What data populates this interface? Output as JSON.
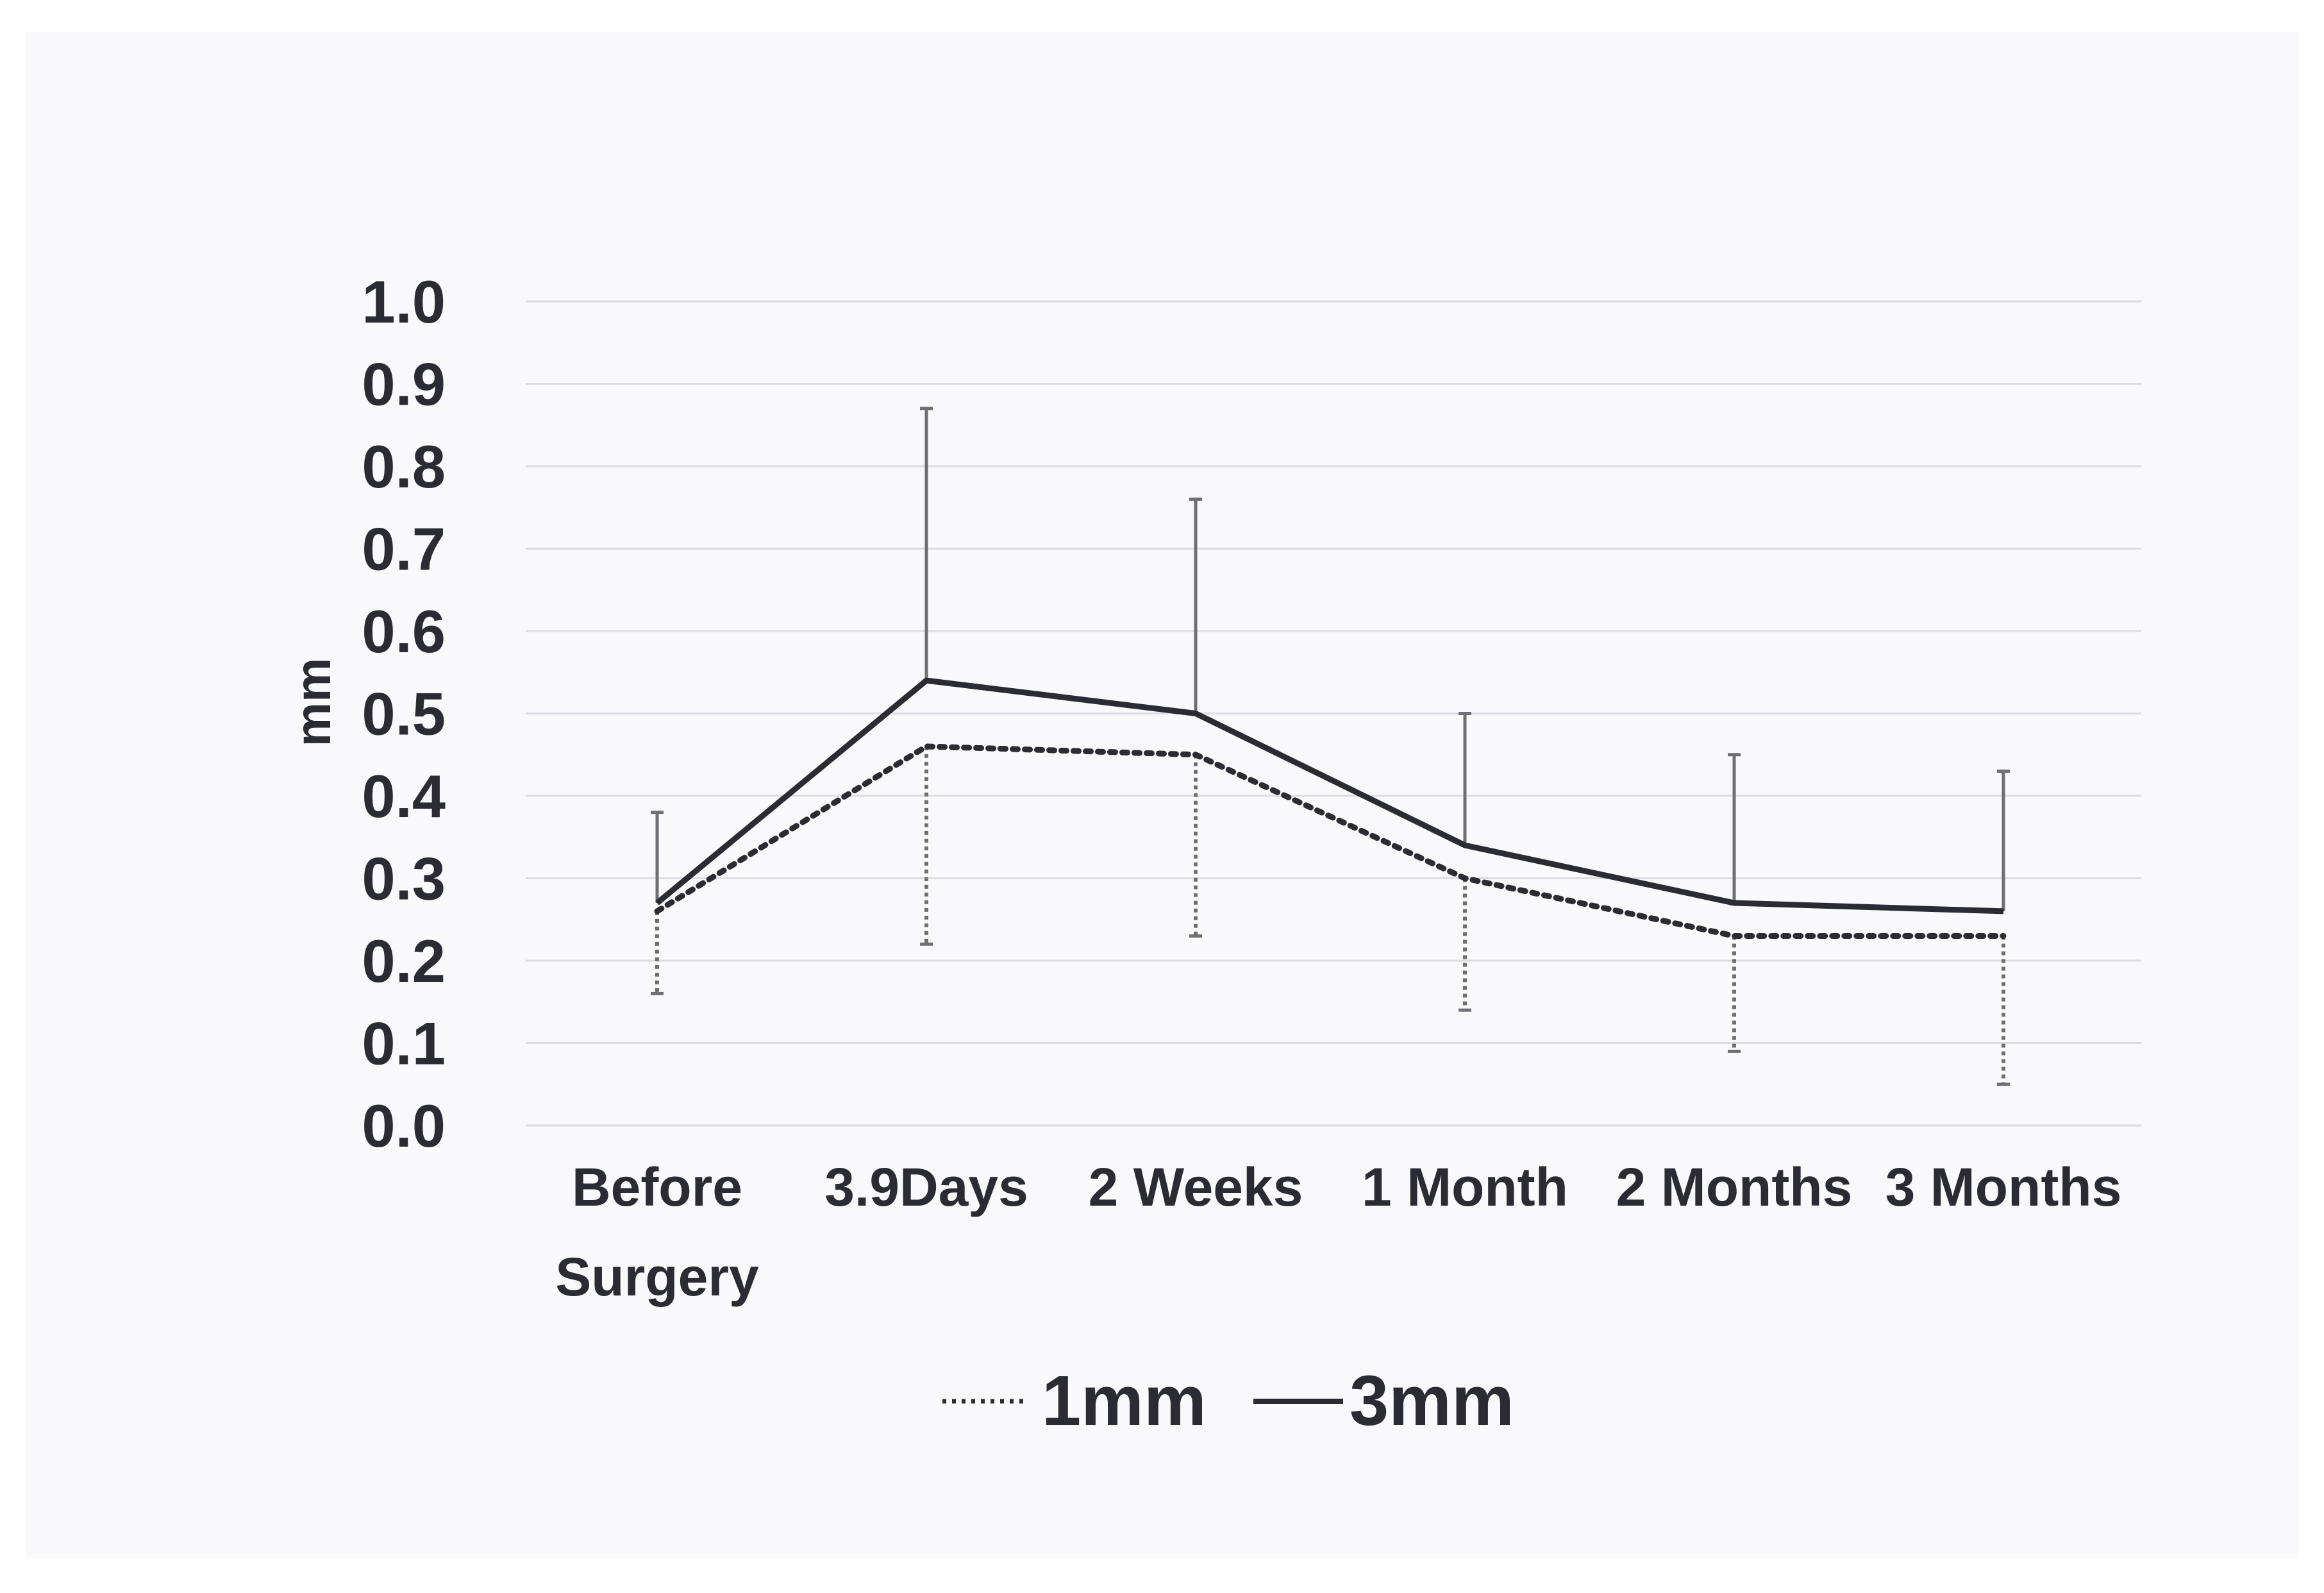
{
  "chart_data": {
    "type": "line",
    "title": "",
    "xlabel": "",
    "ylabel": "mm",
    "ylim": [
      0,
      1.0
    ],
    "ytick_step": 0.1,
    "ytick_labels": [
      "0.0",
      "0.1",
      "0.2",
      "0.3",
      "0.4",
      "0.5",
      "0.6",
      "0.7",
      "0.8",
      "0.9",
      "1.0"
    ],
    "grid": true,
    "legend_position": "bottom-center",
    "categories": [
      [
        "Before",
        "Surgery"
      ],
      [
        "3.9Days"
      ],
      [
        "2 Weeks"
      ],
      [
        "1 Month"
      ],
      [
        "2 Months"
      ],
      [
        "3 Months"
      ]
    ],
    "series": [
      {
        "name": "1mm",
        "style": "dotted",
        "values": [
          0.26,
          0.46,
          0.45,
          0.3,
          0.23,
          0.23
        ],
        "error_lower": [
          0.16,
          0.22,
          0.23,
          0.14,
          0.09,
          0.05
        ]
      },
      {
        "name": "3mm",
        "style": "solid",
        "values": [
          0.27,
          0.54,
          0.5,
          0.34,
          0.27,
          0.26
        ],
        "error_upper": [
          0.38,
          0.87,
          0.76,
          0.5,
          0.45,
          0.43
        ]
      }
    ],
    "colors": {
      "line": "#2b2b33",
      "error_bar": "#6e6e75",
      "grid": "#dcdce2",
      "text": "#2b2b33"
    }
  }
}
